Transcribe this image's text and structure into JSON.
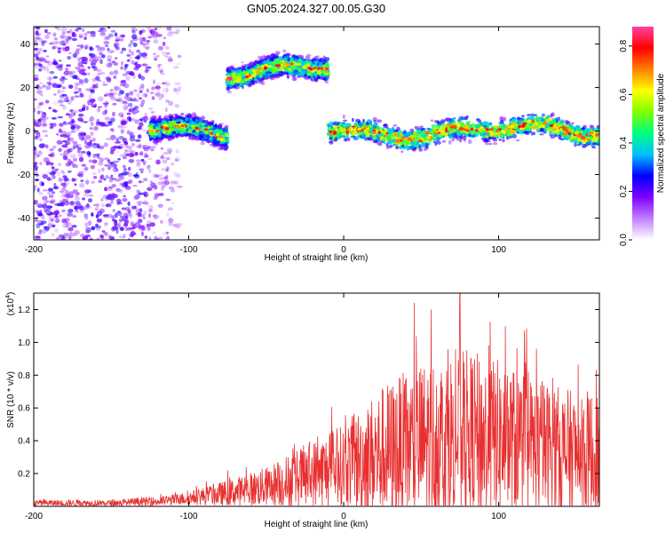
{
  "figure": {
    "title": "GN05.2024.327.00.05.G30"
  },
  "chart_data": [
    {
      "type": "heatmap",
      "xlabel": "Height of straight line (km)",
      "ylabel": "Frequency (Hz)",
      "xlim": [
        -200,
        165
      ],
      "ylim": [
        -50,
        48
      ],
      "xticks": [
        -200,
        -100,
        0,
        100
      ],
      "yticks": [
        -40,
        -20,
        0,
        20,
        40
      ],
      "colorbar": {
        "label": "Normalized spectral amplitude",
        "ticks": [
          0.0,
          0.2,
          0.4,
          0.6,
          0.8
        ],
        "tick_labels": [
          "0.0",
          "0.2",
          "0.4",
          "0.6",
          "0.8"
        ],
        "range": [
          0,
          0.88
        ],
        "colors": [
          "#ffffff",
          "#c080ff",
          "#8000ff",
          "#0000ff",
          "#00c0ff",
          "#00ff80",
          "#80ff00",
          "#ffff00",
          "#ff8000",
          "#ff0000",
          "#ff40a0"
        ]
      },
      "bands": [
        {
          "x_range": [
            -200,
            -120
          ],
          "frequency_range": [
            -50,
            48
          ],
          "amplitude": 0.1
        },
        {
          "x_range": [
            -125,
            -75
          ],
          "frequency_center": 0,
          "amplitude": 0.4
        },
        {
          "x_range": [
            -75,
            -10
          ],
          "frequency_center": 28,
          "amplitude": 0.45
        },
        {
          "x_range": [
            -10,
            165
          ],
          "frequency_center": 0,
          "amplitude": 0.5
        }
      ]
    },
    {
      "type": "line",
      "xlabel": "Height of straight line (km)",
      "ylabel": "SNR (10 * v/v)",
      "scale_label": "(x10",
      "scale_exponent": "4",
      "xlim": [
        -200,
        165
      ],
      "ylim": [
        0,
        1.3
      ],
      "xticks": [
        -200,
        -100,
        0,
        100
      ],
      "yticks": [
        0.2,
        0.4,
        0.6,
        0.8,
        1.0,
        1.2
      ],
      "ytick_labels": [
        "0.2",
        "0.4",
        "0.6",
        "0.8",
        "1.0",
        "1.2"
      ],
      "color": "#e83030",
      "envelope": [
        {
          "x": -200,
          "base": 0.02,
          "spread": 0.02
        },
        {
          "x": -150,
          "base": 0.02,
          "spread": 0.02
        },
        {
          "x": -120,
          "base": 0.03,
          "spread": 0.03
        },
        {
          "x": -100,
          "base": 0.05,
          "spread": 0.04
        },
        {
          "x": -75,
          "base": 0.08,
          "spread": 0.08
        },
        {
          "x": -50,
          "base": 0.12,
          "spread": 0.12
        },
        {
          "x": -25,
          "base": 0.18,
          "spread": 0.2
        },
        {
          "x": 0,
          "base": 0.25,
          "spread": 0.25
        },
        {
          "x": 25,
          "base": 0.32,
          "spread": 0.42
        },
        {
          "x": 50,
          "base": 0.38,
          "spread": 0.5
        },
        {
          "x": 75,
          "base": 0.42,
          "spread": 0.55
        },
        {
          "x": 100,
          "base": 0.4,
          "spread": 0.5
        },
        {
          "x": 125,
          "base": 0.36,
          "spread": 0.42
        },
        {
          "x": 150,
          "base": 0.32,
          "spread": 0.38
        },
        {
          "x": 165,
          "base": 0.3,
          "spread": 0.42
        }
      ],
      "peak": {
        "x": 75,
        "y": 1.3
      }
    }
  ]
}
